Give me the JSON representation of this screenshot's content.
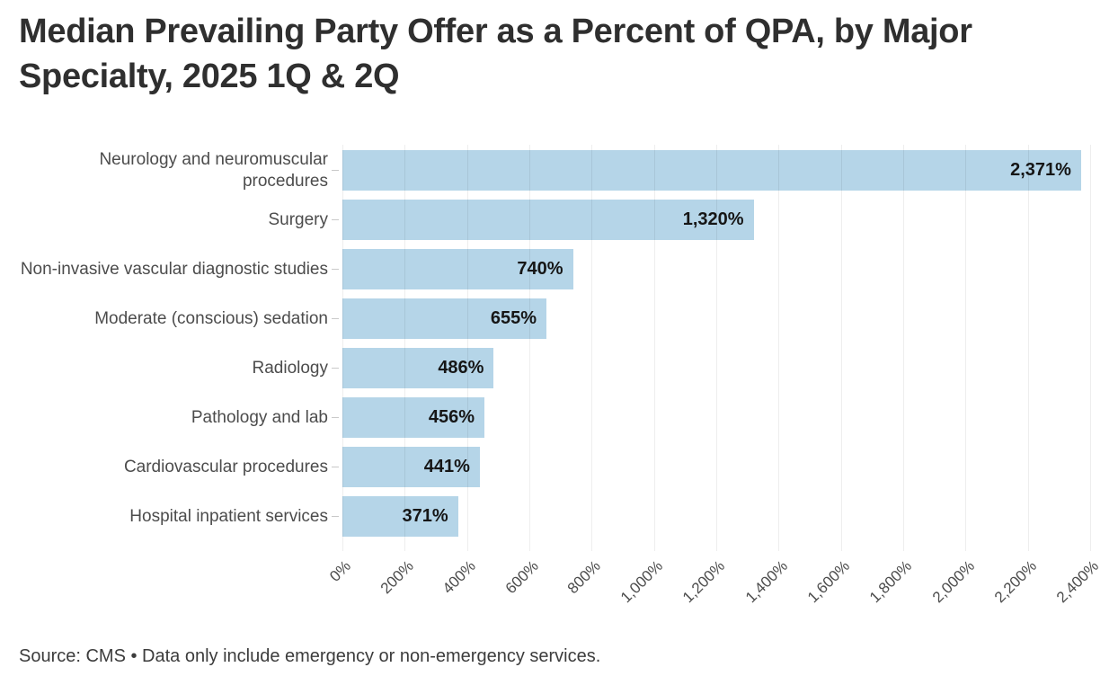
{
  "chart_data": {
    "type": "bar",
    "orientation": "horizontal",
    "title": "Median Prevailing Party Offer as a Percent of QPA, by Major Specialty, 2025 1Q & 2Q",
    "categories": [
      "Neurology and neuromuscular procedures",
      "Surgery",
      "Non-invasive vascular diagnostic studies",
      "Moderate (conscious) sedation",
      "Radiology",
      "Pathology and lab",
      "Cardiovascular procedures",
      "Hospital inpatient services"
    ],
    "values": [
      2371,
      1320,
      740,
      655,
      486,
      456,
      441,
      371
    ],
    "value_labels": [
      "2,371%",
      "1,320%",
      "740%",
      "655%",
      "486%",
      "456%",
      "441%",
      "371%"
    ],
    "xlabel": "",
    "ylabel": "",
    "xlim": [
      0,
      2400
    ],
    "x_ticks": [
      0,
      200,
      400,
      600,
      800,
      1000,
      1200,
      1400,
      1600,
      1800,
      2000,
      2200,
      2400
    ],
    "x_tick_labels": [
      "0%",
      "200%",
      "400%",
      "600%",
      "800%",
      "1,000%",
      "1,200%",
      "1,400%",
      "1,600%",
      "1,800%",
      "2,000%",
      "2,200%",
      "2,400%"
    ],
    "grid": "vertical",
    "legend": "none",
    "source_note": "Source: CMS • Data only include emergency or non-emergency services."
  },
  "colors": {
    "bar": "#b5d5e8",
    "gridline": "#ebebeb",
    "title_text": "#2f2f2f",
    "category_text": "#4c4c4c",
    "value_text": "#161616",
    "tick_text": "#4c4c4c",
    "source_text": "#3c3c3c",
    "background": "#ffffff"
  }
}
